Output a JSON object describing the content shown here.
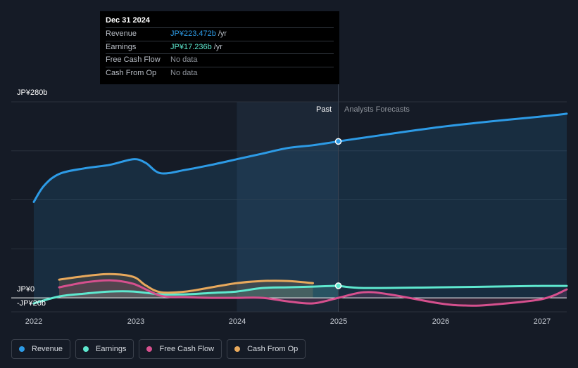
{
  "tooltip": {
    "date": "Dec 31 2024",
    "rows": [
      {
        "label": "Revenue",
        "value": "JP¥223.472b",
        "unit": "/yr",
        "color": "#2d9be6"
      },
      {
        "label": "Earnings",
        "value": "JP¥17.236b",
        "unit": "/yr",
        "color": "#5ee8cf"
      },
      {
        "label": "Free Cash Flow",
        "value": "No data",
        "unit": "",
        "color": "#7b8088"
      },
      {
        "label": "Cash From Op",
        "value": "No data",
        "unit": "",
        "color": "#7b8088"
      }
    ]
  },
  "periods": {
    "past": "Past",
    "forecast": "Analysts Forecasts"
  },
  "legend": [
    {
      "label": "Revenue",
      "color": "#2d9be6"
    },
    {
      "label": "Earnings",
      "color": "#5ee8cf"
    },
    {
      "label": "Free Cash Flow",
      "color": "#d6508e"
    },
    {
      "label": "Cash From Op",
      "color": "#e8a95c"
    }
  ],
  "chart_data": {
    "type": "line",
    "title": "",
    "xlabel": "",
    "ylabel": "",
    "x_ticks": [
      "2022",
      "2023",
      "2024",
      "2025",
      "2026",
      "2027"
    ],
    "y_ticks": [
      {
        "value": 280,
        "label": "JP¥280b"
      },
      {
        "value": 0,
        "label": "JP¥0"
      },
      {
        "value": -20,
        "label": "-JP¥20b"
      }
    ],
    "xlim": [
      2022.0,
      2027.25
    ],
    "ylim": [
      -20,
      280
    ],
    "divider_x": 2025.0,
    "highlight_x": [
      2024.0,
      2025.0
    ],
    "series": [
      {
        "name": "Revenue",
        "color": "#2d9be6",
        "fill": true,
        "points": [
          [
            2022.0,
            137
          ],
          [
            2022.1,
            160
          ],
          [
            2022.25,
            177
          ],
          [
            2022.5,
            185
          ],
          [
            2022.75,
            190
          ],
          [
            2022.98,
            198
          ],
          [
            2023.1,
            193
          ],
          [
            2023.25,
            178
          ],
          [
            2023.5,
            183
          ],
          [
            2023.75,
            190
          ],
          [
            2024.0,
            198
          ],
          [
            2024.25,
            206
          ],
          [
            2024.5,
            214
          ],
          [
            2024.75,
            218
          ],
          [
            2025.0,
            223.472
          ]
        ]
      },
      {
        "name": "Revenue forecast",
        "color": "#2d9be6",
        "fill": true,
        "points": [
          [
            2025.0,
            223.472
          ],
          [
            2025.5,
            234
          ],
          [
            2026.0,
            244
          ],
          [
            2026.5,
            252
          ],
          [
            2027.0,
            259
          ],
          [
            2027.25,
            263
          ]
        ]
      },
      {
        "name": "Earnings",
        "color": "#5ee8cf",
        "fill": true,
        "points": [
          [
            2022.0,
            -8
          ],
          [
            2022.25,
            2
          ],
          [
            2022.5,
            6
          ],
          [
            2022.75,
            9
          ],
          [
            2022.98,
            9
          ],
          [
            2023.25,
            5
          ],
          [
            2023.5,
            5
          ],
          [
            2023.75,
            7
          ],
          [
            2024.0,
            9
          ],
          [
            2024.25,
            14
          ],
          [
            2024.5,
            15
          ],
          [
            2024.75,
            16
          ],
          [
            2025.0,
            17.236
          ]
        ]
      },
      {
        "name": "Earnings forecast",
        "color": "#5ee8cf",
        "fill": false,
        "points": [
          [
            2025.0,
            17.236
          ],
          [
            2025.25,
            14
          ],
          [
            2026.0,
            15
          ],
          [
            2026.5,
            16
          ],
          [
            2027.0,
            17
          ],
          [
            2027.25,
            17
          ]
        ]
      },
      {
        "name": "Free Cash Flow",
        "color": "#d6508e",
        "fill": true,
        "points": [
          [
            2022.25,
            15
          ],
          [
            2022.5,
            22
          ],
          [
            2022.75,
            25
          ],
          [
            2022.98,
            20
          ],
          [
            2023.25,
            3
          ],
          [
            2023.5,
            1
          ],
          [
            2023.75,
            0
          ],
          [
            2024.0,
            0
          ],
          [
            2024.25,
            0
          ],
          [
            2024.5,
            -5
          ],
          [
            2024.75,
            -8
          ],
          [
            2025.0,
            0
          ],
          [
            2025.25,
            8
          ],
          [
            2025.5,
            5
          ],
          [
            2026.0,
            -8
          ],
          [
            2026.25,
            -11
          ],
          [
            2026.5,
            -10
          ],
          [
            2027.0,
            -2
          ],
          [
            2027.25,
            12
          ]
        ]
      },
      {
        "name": "Cash From Op",
        "color": "#e8a95c",
        "fill": true,
        "points": [
          [
            2022.25,
            26
          ],
          [
            2022.5,
            31
          ],
          [
            2022.75,
            34
          ],
          [
            2022.98,
            30
          ],
          [
            2023.1,
            18
          ],
          [
            2023.25,
            8
          ],
          [
            2023.5,
            9
          ],
          [
            2023.75,
            15
          ],
          [
            2024.0,
            21
          ],
          [
            2024.25,
            24
          ],
          [
            2024.5,
            24
          ],
          [
            2024.75,
            21
          ]
        ]
      }
    ],
    "markers": [
      {
        "series": "Revenue",
        "x": 2025.0,
        "y": 223.472
      },
      {
        "series": "Earnings",
        "x": 2025.0,
        "y": 17.236
      }
    ]
  }
}
